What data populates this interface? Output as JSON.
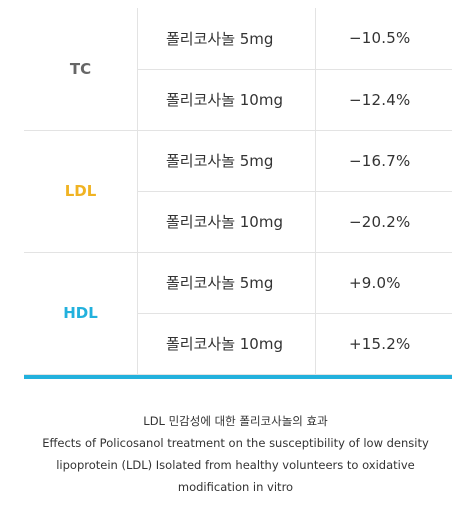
{
  "colors": {
    "tc": "#666666",
    "ldl": "#f0b323",
    "hdl": "#22b1dd",
    "rule": "#22b1dd"
  },
  "groups": [
    {
      "label": "TC",
      "rows": [
        {
          "treatment": "폴리코사놀 5mg",
          "value": "−10.5%"
        },
        {
          "treatment": "폴리코사놀 10mg",
          "value": "−12.4%"
        }
      ]
    },
    {
      "label": "LDL",
      "rows": [
        {
          "treatment": "폴리코사놀 5mg",
          "value": "−16.7%"
        },
        {
          "treatment": "폴리코사놀 10mg",
          "value": "−20.2%"
        }
      ]
    },
    {
      "label": "HDL",
      "rows": [
        {
          "treatment": "폴리코사놀 5mg",
          "value": "+9.0%"
        },
        {
          "treatment": "폴리코사놀 10mg",
          "value": "+15.2%"
        }
      ]
    }
  ],
  "caption": {
    "korean": "LDL 민감성에 대한 폴리코사놀의 효과",
    "english_lines": [
      "Effects of Policosanol treatment on the susceptibility of low density",
      "lipoprotein (LDL) Isolated from healthy volunteers to oxidative",
      "modification in vitro"
    ]
  }
}
